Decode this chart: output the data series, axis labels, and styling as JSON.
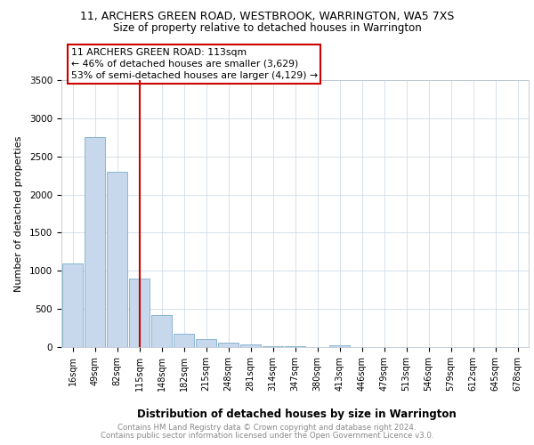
{
  "title1": "11, ARCHERS GREEN ROAD, WESTBROOK, WARRINGTON, WA5 7XS",
  "title2": "Size of property relative to detached houses in Warrington",
  "xlabel": "Distribution of detached houses by size in Warrington",
  "ylabel": "Number of detached properties",
  "categories": [
    "16sqm",
    "49sqm",
    "82sqm",
    "115sqm",
    "148sqm",
    "182sqm",
    "215sqm",
    "248sqm",
    "281sqm",
    "314sqm",
    "347sqm",
    "380sqm",
    "413sqm",
    "446sqm",
    "479sqm",
    "513sqm",
    "546sqm",
    "579sqm",
    "612sqm",
    "645sqm",
    "678sqm"
  ],
  "values": [
    1100,
    2750,
    2300,
    900,
    420,
    175,
    100,
    55,
    30,
    15,
    8,
    5,
    25,
    5,
    3,
    2,
    2,
    1,
    1,
    1,
    1
  ],
  "bar_color": "#c8d8ec",
  "bar_edge_color": "#7aaecc",
  "vline_x_index": 3,
  "vline_color": "#cc0000",
  "annotation_text": "11 ARCHERS GREEN ROAD: 113sqm\n← 46% of detached houses are smaller (3,629)\n53% of semi-detached houses are larger (4,129) →",
  "annotation_box_color": "#cc0000",
  "ylim": [
    0,
    3500
  ],
  "yticks": [
    0,
    500,
    1000,
    1500,
    2000,
    2500,
    3000,
    3500
  ],
  "footer1": "Contains HM Land Registry data © Crown copyright and database right 2024.",
  "footer2": "Contains public sector information licensed under the Open Government Licence v3.0.",
  "background_color": "#ffffff",
  "grid_color": "#d0dce8"
}
